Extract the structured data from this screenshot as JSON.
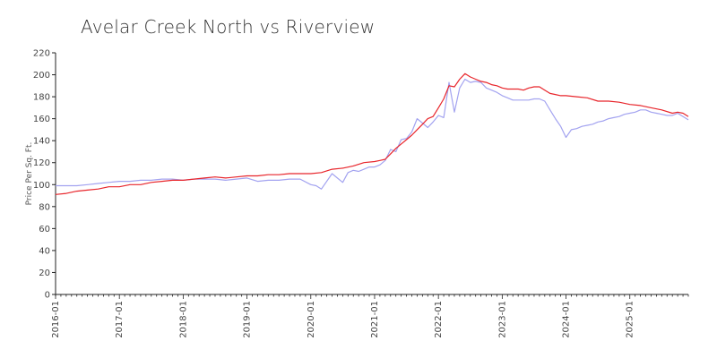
{
  "chart_data": {
    "type": "line",
    "title": "Avelar Creek North vs Riverview",
    "xlabel": "",
    "ylabel": "Price Per Sq. Ft.",
    "ylim": [
      0,
      220
    ],
    "yticks": [
      0,
      20,
      40,
      60,
      80,
      100,
      120,
      140,
      160,
      180,
      200,
      220
    ],
    "xlim": [
      "2016-01",
      "2025-12"
    ],
    "xticks": [
      "2016-01",
      "2017-01",
      "2018-01",
      "2019-01",
      "2020-01",
      "2021-01",
      "2022-01",
      "2023-01",
      "2024-01",
      "2025-01"
    ],
    "grid": false,
    "legend": "none",
    "series": [
      {
        "color": "#e8252b",
        "points": [
          [
            "2016-01",
            91
          ],
          [
            "2016-03",
            92
          ],
          [
            "2016-05",
            94
          ],
          [
            "2016-07",
            95
          ],
          [
            "2016-09",
            96
          ],
          [
            "2016-11",
            98
          ],
          [
            "2017-01",
            98
          ],
          [
            "2017-03",
            100
          ],
          [
            "2017-05",
            100
          ],
          [
            "2017-07",
            102
          ],
          [
            "2017-09",
            103
          ],
          [
            "2017-11",
            104
          ],
          [
            "2018-01",
            104
          ],
          [
            "2018-03",
            105
          ],
          [
            "2018-05",
            106
          ],
          [
            "2018-07",
            107
          ],
          [
            "2018-09",
            106
          ],
          [
            "2018-11",
            107
          ],
          [
            "2019-01",
            108
          ],
          [
            "2019-03",
            108
          ],
          [
            "2019-05",
            109
          ],
          [
            "2019-07",
            109
          ],
          [
            "2019-09",
            110
          ],
          [
            "2019-11",
            110
          ],
          [
            "2020-01",
            110
          ],
          [
            "2020-03",
            111
          ],
          [
            "2020-05",
            114
          ],
          [
            "2020-07",
            115
          ],
          [
            "2020-09",
            117
          ],
          [
            "2020-11",
            120
          ],
          [
            "2021-01",
            121
          ],
          [
            "2021-02",
            122
          ],
          [
            "2021-03",
            123
          ],
          [
            "2021-04",
            128
          ],
          [
            "2021-05",
            133
          ],
          [
            "2021-06",
            137
          ],
          [
            "2021-07",
            141
          ],
          [
            "2021-08",
            145
          ],
          [
            "2021-09",
            150
          ],
          [
            "2021-10",
            155
          ],
          [
            "2021-11",
            160
          ],
          [
            "2021-12",
            162
          ],
          [
            "2022-01",
            170
          ],
          [
            "2022-02",
            178
          ],
          [
            "2022-03",
            190
          ],
          [
            "2022-04",
            189
          ],
          [
            "2022-05",
            196
          ],
          [
            "2022-06",
            201
          ],
          [
            "2022-07",
            198
          ],
          [
            "2022-08",
            196
          ],
          [
            "2022-09",
            194
          ],
          [
            "2022-10",
            193
          ],
          [
            "2022-11",
            191
          ],
          [
            "2022-12",
            190
          ],
          [
            "2023-01",
            188
          ],
          [
            "2023-02",
            187
          ],
          [
            "2023-03",
            187
          ],
          [
            "2023-04",
            187
          ],
          [
            "2023-05",
            186
          ],
          [
            "2023-06",
            188
          ],
          [
            "2023-07",
            189
          ],
          [
            "2023-08",
            189
          ],
          [
            "2023-09",
            186
          ],
          [
            "2023-10",
            183
          ],
          [
            "2023-11",
            182
          ],
          [
            "2023-12",
            181
          ],
          [
            "2024-01",
            181
          ],
          [
            "2024-03",
            180
          ],
          [
            "2024-05",
            179
          ],
          [
            "2024-07",
            176
          ],
          [
            "2024-09",
            176
          ],
          [
            "2024-11",
            175
          ],
          [
            "2025-01",
            173
          ],
          [
            "2025-03",
            172
          ],
          [
            "2025-05",
            170
          ],
          [
            "2025-07",
            168
          ],
          [
            "2025-09",
            165
          ],
          [
            "2025-10",
            166
          ],
          [
            "2025-11",
            165
          ],
          [
            "2025-12",
            162
          ]
        ]
      },
      {
        "color": "#a3a3f0",
        "points": [
          [
            "2016-01",
            99
          ],
          [
            "2016-03",
            99
          ],
          [
            "2016-05",
            99
          ],
          [
            "2016-07",
            100
          ],
          [
            "2016-09",
            101
          ],
          [
            "2016-11",
            102
          ],
          [
            "2017-01",
            103
          ],
          [
            "2017-03",
            103
          ],
          [
            "2017-05",
            104
          ],
          [
            "2017-07",
            104
          ],
          [
            "2017-09",
            105
          ],
          [
            "2017-11",
            105
          ],
          [
            "2018-01",
            104
          ],
          [
            "2018-03",
            105
          ],
          [
            "2018-05",
            105
          ],
          [
            "2018-07",
            105
          ],
          [
            "2018-09",
            104
          ],
          [
            "2018-11",
            105
          ],
          [
            "2019-01",
            106
          ],
          [
            "2019-03",
            103
          ],
          [
            "2019-05",
            104
          ],
          [
            "2019-07",
            104
          ],
          [
            "2019-09",
            105
          ],
          [
            "2019-11",
            105
          ],
          [
            "2020-01",
            100
          ],
          [
            "2020-02",
            99
          ],
          [
            "2020-03",
            96
          ],
          [
            "2020-05",
            110
          ],
          [
            "2020-07",
            102
          ],
          [
            "2020-08",
            111
          ],
          [
            "2020-09",
            113
          ],
          [
            "2020-10",
            112
          ],
          [
            "2020-11",
            114
          ],
          [
            "2020-12",
            116
          ],
          [
            "2021-01",
            116
          ],
          [
            "2021-02",
            118
          ],
          [
            "2021-03",
            122
          ],
          [
            "2021-04",
            132
          ],
          [
            "2021-05",
            130
          ],
          [
            "2021-06",
            141
          ],
          [
            "2021-07",
            142
          ],
          [
            "2021-08",
            148
          ],
          [
            "2021-09",
            160
          ],
          [
            "2021-10",
            156
          ],
          [
            "2021-11",
            152
          ],
          [
            "2021-12",
            157
          ],
          [
            "2022-01",
            163
          ],
          [
            "2022-02",
            161
          ],
          [
            "2022-03",
            193
          ],
          [
            "2022-04",
            166
          ],
          [
            "2022-05",
            188
          ],
          [
            "2022-06",
            196
          ],
          [
            "2022-07",
            193
          ],
          [
            "2022-08",
            194
          ],
          [
            "2022-09",
            193
          ],
          [
            "2022-10",
            188
          ],
          [
            "2022-11",
            186
          ],
          [
            "2022-12",
            184
          ],
          [
            "2023-01",
            181
          ],
          [
            "2023-02",
            179
          ],
          [
            "2023-03",
            177
          ],
          [
            "2023-04",
            177
          ],
          [
            "2023-05",
            177
          ],
          [
            "2023-06",
            177
          ],
          [
            "2023-07",
            178
          ],
          [
            "2023-08",
            178
          ],
          [
            "2023-09",
            176
          ],
          [
            "2023-10",
            168
          ],
          [
            "2023-11",
            160
          ],
          [
            "2023-12",
            153
          ],
          [
            "2024-01",
            143
          ],
          [
            "2024-02",
            150
          ],
          [
            "2024-03",
            151
          ],
          [
            "2024-04",
            153
          ],
          [
            "2024-05",
            154
          ],
          [
            "2024-06",
            155
          ],
          [
            "2024-07",
            157
          ],
          [
            "2024-08",
            158
          ],
          [
            "2024-09",
            160
          ],
          [
            "2024-10",
            161
          ],
          [
            "2024-11",
            162
          ],
          [
            "2024-12",
            164
          ],
          [
            "2025-01",
            165
          ],
          [
            "2025-02",
            166
          ],
          [
            "2025-03",
            168
          ],
          [
            "2025-04",
            168
          ],
          [
            "2025-05",
            166
          ],
          [
            "2025-06",
            165
          ],
          [
            "2025-07",
            164
          ],
          [
            "2025-08",
            163
          ],
          [
            "2025-09",
            163
          ],
          [
            "2025-10",
            165
          ],
          [
            "2025-11",
            162
          ],
          [
            "2025-12",
            159
          ]
        ]
      }
    ]
  }
}
